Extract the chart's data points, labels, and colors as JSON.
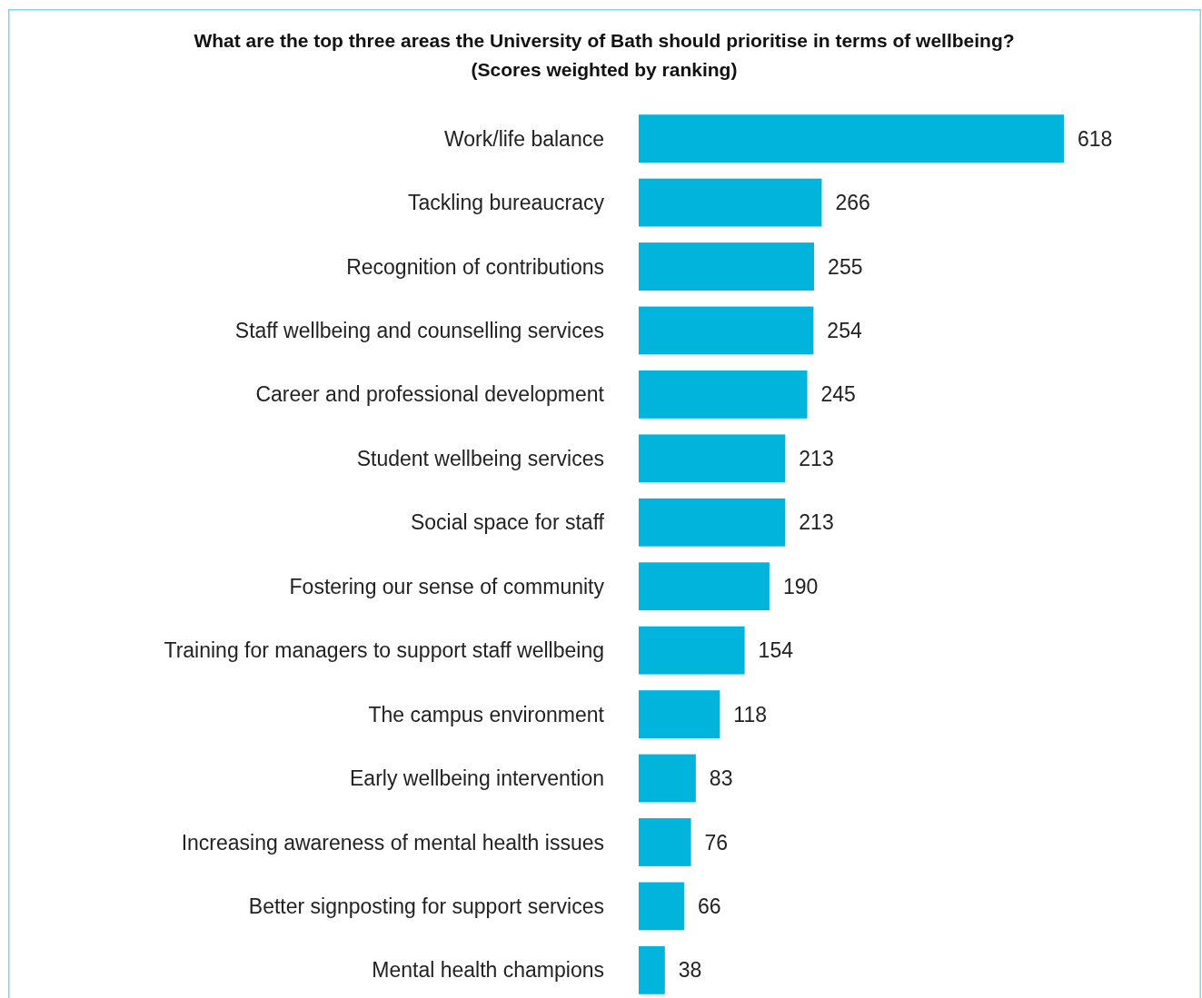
{
  "chart_data": {
    "type": "bar",
    "orientation": "horizontal",
    "title": "What are the top three areas the University of Bath should prioritise in terms of wellbeing?",
    "subtitle": "(Scores weighted by ranking)",
    "categories": [
      "Work/life balance",
      "Tackling bureaucracy",
      "Recognition of contributions",
      "Staff wellbeing and counselling services",
      "Career and professional development",
      "Student wellbeing services",
      "Social space for staff",
      "Fostering our sense of community",
      "Training for managers to support staff wellbeing",
      "The campus environment",
      "Early wellbeing intervention",
      "Increasing awareness of mental health issues",
      "Better signposting for support services",
      "Mental health champions"
    ],
    "values": [
      618,
      266,
      255,
      254,
      245,
      213,
      213,
      190,
      154,
      118,
      83,
      76,
      66,
      38
    ],
    "color": "#00b4dc",
    "data_labels": true
  }
}
